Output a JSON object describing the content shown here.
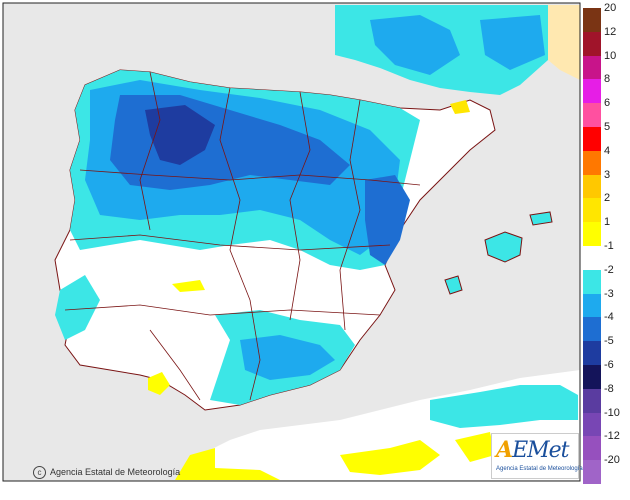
{
  "credit": {
    "symbol": "c",
    "text": "Agencia Estatal de Meteorología"
  },
  "logo": {
    "mark_a": "A",
    "mark_rest": "EMet",
    "subtitle": "Agencia Estatal de Meteorología"
  },
  "legend": {
    "items": [
      {
        "label": "20",
        "color": "#7a3414"
      },
      {
        "label": "12",
        "color": "#a0142a"
      },
      {
        "label": "10",
        "color": "#c8148a"
      },
      {
        "label": "8",
        "color": "#e61ee6"
      },
      {
        "label": "6",
        "color": "#ff50a0"
      },
      {
        "label": "5",
        "color": "#ff0000"
      },
      {
        "label": "4",
        "color": "#ff7800"
      },
      {
        "label": "3",
        "color": "#ffc800"
      },
      {
        "label": "2",
        "color": "#ffe600"
      },
      {
        "label": "1",
        "color": "#ffff00"
      },
      {
        "label": "-1",
        "color": "#ffffff"
      },
      {
        "label": "-2",
        "color": "#3ce6e6"
      },
      {
        "label": "-3",
        "color": "#1eaaee"
      },
      {
        "label": "-4",
        "color": "#1e6ed2"
      },
      {
        "label": "-5",
        "color": "#1e3ca0"
      },
      {
        "label": "-6",
        "color": "#14145a"
      },
      {
        "label": "-8",
        "color": "#5a3ca0"
      },
      {
        "label": "-10",
        "color": "#7846b4"
      },
      {
        "label": "-12",
        "color": "#9650be"
      },
      {
        "label": "-20",
        "color": "#a064c8"
      }
    ]
  }
}
